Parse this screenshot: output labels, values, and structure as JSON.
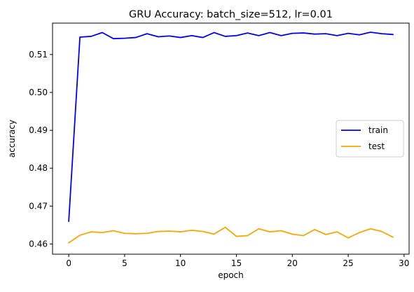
{
  "chart_data": {
    "type": "line",
    "title": "GRU Accuracy: batch_size=512, lr=0.01",
    "xlabel": "epoch",
    "ylabel": "accuracy",
    "xlim": [
      -1.45,
      30.45
    ],
    "ylim": [
      0.4573,
      0.5183
    ],
    "xticks": [
      0,
      5,
      10,
      15,
      20,
      25,
      30
    ],
    "yticks": [
      0.46,
      0.47,
      0.48,
      0.49,
      0.5,
      0.51
    ],
    "ytick_labels": [
      "0.46",
      "0.47",
      "0.48",
      "0.49",
      "0.50",
      "0.51"
    ],
    "grid": false,
    "legend_position": "center-right",
    "x": [
      0,
      1,
      2,
      3,
      4,
      5,
      6,
      7,
      8,
      9,
      10,
      11,
      12,
      13,
      14,
      15,
      16,
      17,
      18,
      19,
      20,
      21,
      22,
      23,
      24,
      25,
      26,
      27,
      28,
      29
    ],
    "series": [
      {
        "name": "train",
        "color": "#0000ff",
        "values": [
          0.466,
          0.5146,
          0.5148,
          0.5158,
          0.5142,
          0.5143,
          0.5145,
          0.5155,
          0.5147,
          0.5149,
          0.5145,
          0.515,
          0.5145,
          0.5158,
          0.5148,
          0.515,
          0.5157,
          0.515,
          0.5158,
          0.515,
          0.5156,
          0.5157,
          0.5154,
          0.5155,
          0.515,
          0.5156,
          0.5152,
          0.5159,
          0.5155,
          0.5153
        ]
      },
      {
        "name": "test",
        "color": "#ffa500",
        "values": [
          0.4603,
          0.4623,
          0.4632,
          0.463,
          0.4635,
          0.4628,
          0.4627,
          0.4628,
          0.4633,
          0.4634,
          0.4632,
          0.4636,
          0.4633,
          0.4626,
          0.4644,
          0.462,
          0.4622,
          0.464,
          0.4632,
          0.4635,
          0.4626,
          0.4622,
          0.4638,
          0.4625,
          0.4632,
          0.4616,
          0.463,
          0.464,
          0.4633,
          0.4618
        ]
      }
    ]
  }
}
